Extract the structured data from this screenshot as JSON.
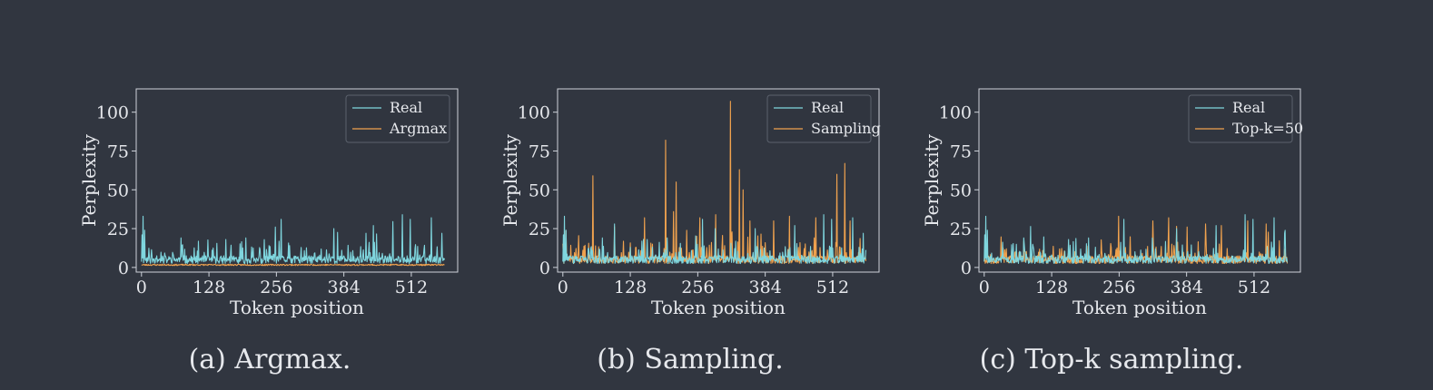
{
  "figure": {
    "background": "#313640",
    "colors": {
      "real": "#7fd6de",
      "generated": "#f0a24e"
    }
  },
  "chart_data": [
    {
      "type": "line",
      "caption": "(a) Argmax.",
      "xlabel": "Token position",
      "ylabel": "Perplexity",
      "xticks": [
        0,
        128,
        256,
        384,
        512
      ],
      "yticks": [
        0,
        25,
        50,
        75,
        100
      ],
      "xlim": [
        -10,
        600
      ],
      "ylim": [
        -3,
        115
      ],
      "legend_position": "top-right",
      "series": [
        {
          "name": "Real",
          "color": "#7fd6de",
          "generator": "real",
          "seed": 11
        },
        {
          "name": "Argmax",
          "color": "#f0a24e",
          "generator": "argmax",
          "seed": 23
        }
      ]
    },
    {
      "type": "line",
      "caption": "(b) Sampling.",
      "xlabel": "Token position",
      "ylabel": "Perplexity",
      "xticks": [
        0,
        128,
        256,
        384,
        512
      ],
      "yticks": [
        0,
        25,
        50,
        75,
        100
      ],
      "xlim": [
        -10,
        600
      ],
      "ylim": [
        -3,
        115
      ],
      "legend_position": "top-right",
      "series": [
        {
          "name": "Real",
          "color": "#7fd6de",
          "generator": "real",
          "seed": 37
        },
        {
          "name": "Sampling",
          "color": "#f0a24e",
          "generator": "sampling",
          "seed": 41,
          "peaks": [
            [
              57,
              59
            ],
            [
              155,
              32
            ],
            [
              195,
              82
            ],
            [
              210,
              36
            ],
            [
              215,
              55
            ],
            [
              260,
              32
            ],
            [
              290,
              34
            ],
            [
              318,
              107
            ],
            [
              335,
              63
            ],
            [
              342,
              50
            ],
            [
              355,
              30
            ],
            [
              400,
              30
            ],
            [
              430,
              33
            ],
            [
              480,
              32
            ],
            [
              520,
              60
            ],
            [
              535,
              67
            ],
            [
              545,
              30
            ]
          ]
        }
      ]
    },
    {
      "type": "line",
      "caption": "(c) Top-k sampling.",
      "xlabel": "Token position",
      "ylabel": "Perplexity",
      "xticks": [
        0,
        128,
        256,
        384,
        512
      ],
      "yticks": [
        0,
        25,
        50,
        75,
        100
      ],
      "xlim": [
        -10,
        600
      ],
      "ylim": [
        -3,
        115
      ],
      "legend_position": "top-right",
      "series": [
        {
          "name": "Real",
          "color": "#7fd6de",
          "generator": "real",
          "seed": 53
        },
        {
          "name": "Top-k=50",
          "color": "#f0a24e",
          "generator": "topk",
          "seed": 67,
          "peaks": [
            [
              255,
              33
            ],
            [
              320,
              30
            ],
            [
              350,
              32
            ],
            [
              385,
              26
            ],
            [
              420,
              28
            ],
            [
              450,
              27
            ],
            [
              500,
              30
            ],
            [
              535,
              28
            ]
          ]
        }
      ]
    }
  ]
}
